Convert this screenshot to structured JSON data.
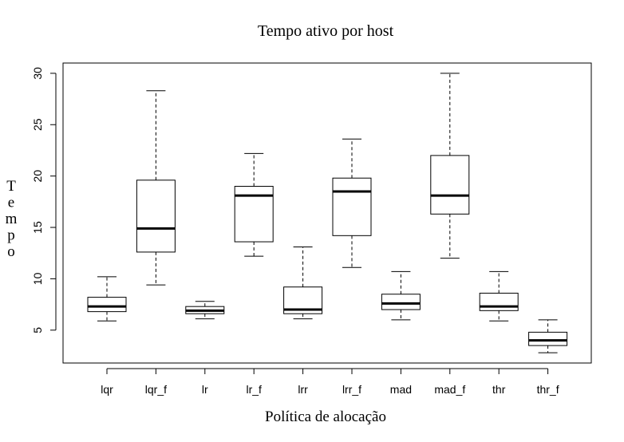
{
  "chart_data": {
    "type": "boxplot",
    "title": "Tempo ativo por host",
    "xlabel": "Política de alocação",
    "ylabel": "Tempo",
    "ylim": [
      1.8,
      31.0
    ],
    "yticks": [
      5,
      10,
      15,
      20,
      25,
      30
    ],
    "grid": false,
    "categories": [
      "lqr",
      "lqr_f",
      "lr",
      "lr_f",
      "lrr",
      "lrr_f",
      "mad",
      "mad_f",
      "thr",
      "thr_f"
    ],
    "boxes": [
      {
        "min": 5.9,
        "q1": 6.8,
        "median": 7.3,
        "q3": 8.2,
        "max": 10.2
      },
      {
        "min": 9.4,
        "q1": 12.6,
        "median": 14.9,
        "q3": 19.6,
        "max": 28.3
      },
      {
        "min": 6.1,
        "q1": 6.6,
        "median": 6.9,
        "q3": 7.3,
        "max": 7.8
      },
      {
        "min": 12.2,
        "q1": 13.6,
        "median": 18.1,
        "q3": 19.0,
        "max": 22.2
      },
      {
        "min": 6.1,
        "q1": 6.6,
        "median": 7.0,
        "q3": 9.2,
        "max": 13.1
      },
      {
        "min": 11.1,
        "q1": 14.2,
        "median": 18.5,
        "q3": 19.8,
        "max": 23.6
      },
      {
        "min": 6.0,
        "q1": 7.0,
        "median": 7.6,
        "q3": 8.5,
        "max": 10.7
      },
      {
        "min": 12.0,
        "q1": 16.3,
        "median": 18.1,
        "q3": 22.0,
        "max": 30.0
      },
      {
        "min": 5.9,
        "q1": 6.9,
        "median": 7.3,
        "q3": 8.6,
        "max": 10.7
      },
      {
        "min": 2.8,
        "q1": 3.5,
        "median": 4.0,
        "q3": 4.8,
        "max": 6.0
      }
    ]
  }
}
